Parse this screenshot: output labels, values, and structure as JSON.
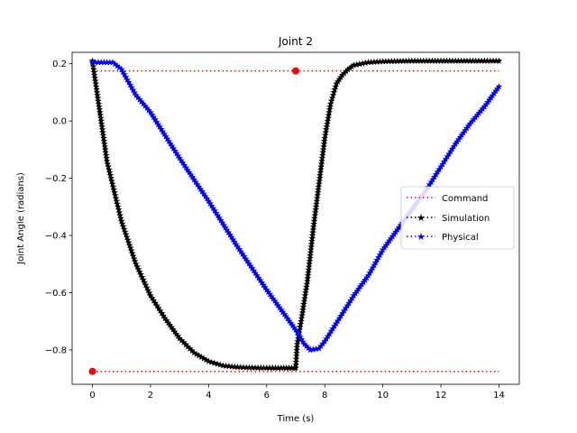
{
  "chart_data": {
    "type": "line",
    "title": "Joint 2",
    "xlabel": "Time (s)",
    "ylabel": "Joint Angle (radians)",
    "xlim": [
      -0.7,
      14.7
    ],
    "ylim": [
      -0.92,
      0.24
    ],
    "xticks": [
      0,
      2,
      4,
      6,
      8,
      10,
      12,
      14
    ],
    "yticks": [
      -0.8,
      -0.6,
      -0.4,
      -0.2,
      0.0,
      0.2
    ],
    "xtick_labels": [
      "0",
      "2",
      "4",
      "6",
      "8",
      "10",
      "12",
      "14"
    ],
    "ytick_labels": [
      "−0.8",
      "−0.6",
      "−0.4",
      "−0.2",
      "0.0",
      "0.2"
    ],
    "grid": false,
    "legend_position": "center-right",
    "series": [
      {
        "name": "Command",
        "color": "#ff0000",
        "linestyle": "dotted",
        "marker": "circle",
        "segments": [
          {
            "x": [
              0,
              14
            ],
            "y": [
              -0.875,
              -0.875
            ]
          },
          {
            "x": [
              0,
              14
            ],
            "y": [
              0.175,
              0.175
            ]
          }
        ],
        "marker_points": [
          {
            "x": 0,
            "y": -0.875
          },
          {
            "x": 7,
            "y": 0.175
          }
        ]
      },
      {
        "name": "Simulation",
        "color": "#000000",
        "linestyle": "dotted",
        "marker": "star",
        "x": [
          0.0,
          0.5,
          1.0,
          1.5,
          2.0,
          2.5,
          3.0,
          3.5,
          4.0,
          4.5,
          5.0,
          5.5,
          6.0,
          6.5,
          6.95,
          7.0,
          7.05,
          7.2,
          7.4,
          7.6,
          7.8,
          8.0,
          8.2,
          8.4,
          8.6,
          8.8,
          9.0,
          9.5,
          10.0,
          10.5,
          11.0,
          12.0,
          13.0,
          14.0
        ],
        "y": [
          0.21,
          -0.14,
          -0.35,
          -0.5,
          -0.61,
          -0.69,
          -0.76,
          -0.81,
          -0.84,
          -0.855,
          -0.86,
          -0.862,
          -0.863,
          -0.863,
          -0.863,
          -0.863,
          -0.78,
          -0.69,
          -0.56,
          -0.38,
          -0.22,
          -0.06,
          0.06,
          0.13,
          0.16,
          0.18,
          0.195,
          0.205,
          0.208,
          0.209,
          0.21,
          0.21,
          0.21,
          0.21
        ]
      },
      {
        "name": "Physical",
        "color": "#0000ff",
        "linestyle": "dotted",
        "marker": "star",
        "x": [
          0.0,
          0.3,
          0.7,
          1.0,
          1.5,
          2.0,
          3.0,
          4.0,
          5.0,
          6.0,
          6.5,
          7.0,
          7.3,
          7.5,
          7.8,
          8.0,
          8.5,
          9.0,
          9.5,
          10.0,
          10.5,
          11.0,
          11.5,
          12.0,
          12.5,
          13.0,
          13.5,
          14.0
        ],
        "y": [
          0.205,
          0.205,
          0.205,
          0.18,
          0.09,
          0.03,
          -0.13,
          -0.28,
          -0.44,
          -0.59,
          -0.66,
          -0.73,
          -0.78,
          -0.8,
          -0.795,
          -0.77,
          -0.69,
          -0.61,
          -0.54,
          -0.45,
          -0.38,
          -0.31,
          -0.24,
          -0.16,
          -0.08,
          -0.01,
          0.05,
          0.12
        ]
      }
    ]
  }
}
